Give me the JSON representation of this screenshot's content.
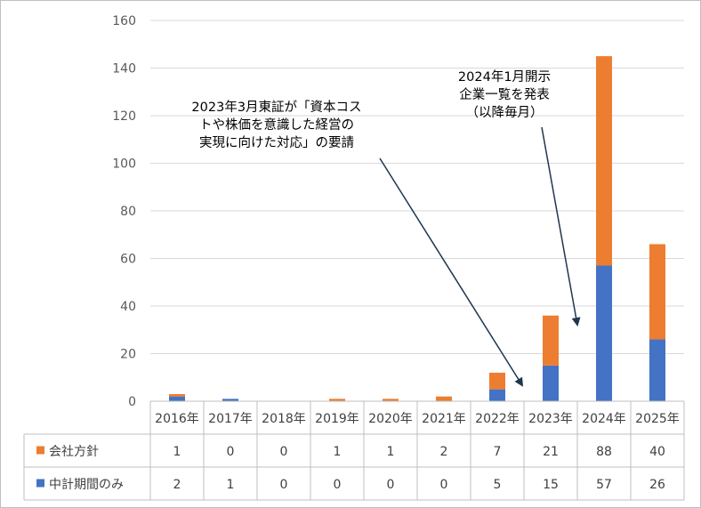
{
  "chart_data": {
    "type": "bar",
    "stacked": true,
    "categories": [
      "2016年",
      "2017年",
      "2018年",
      "2019年",
      "2020年",
      "2021年",
      "2022年",
      "2023年",
      "2024年",
      "2025年"
    ],
    "series": [
      {
        "name": "中計期間のみ",
        "color": "#4472c4",
        "values": [
          2,
          1,
          0,
          0,
          0,
          0,
          5,
          15,
          57,
          26
        ]
      },
      {
        "name": "会社方針",
        "color": "#ed7d31",
        "values": [
          1,
          0,
          0,
          1,
          1,
          2,
          7,
          21,
          88,
          40
        ]
      }
    ],
    "table_rows": [
      "会社方針",
      "中計期間のみ"
    ],
    "ylim": [
      0,
      160
    ],
    "yticks": [
      0,
      20,
      40,
      60,
      80,
      100,
      120,
      140,
      160
    ],
    "grid": true,
    "legend": "data-table",
    "annotations": [
      {
        "lines": [
          "2023年3月東証が「資本コス",
          "トや株価を意識した経営の",
          "実現に向けた対応」の要請"
        ],
        "points_to": "2023年"
      },
      {
        "lines": [
          "2024年1月開示",
          "企業一覧を発表",
          "（以降毎月）"
        ],
        "points_to": "2024年"
      }
    ]
  }
}
